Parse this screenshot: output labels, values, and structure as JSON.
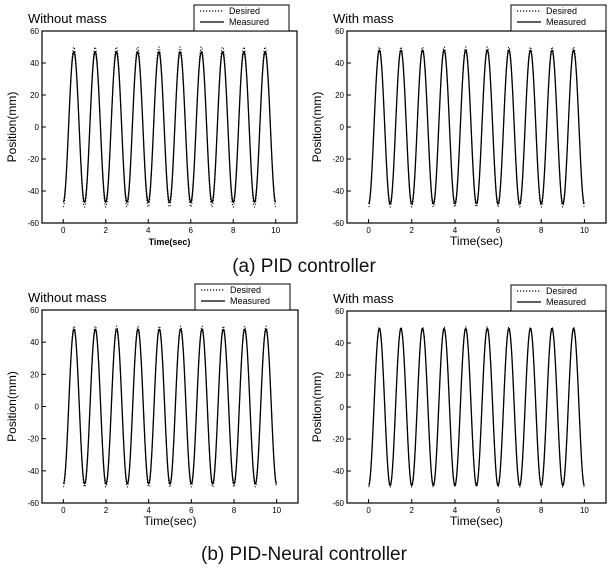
{
  "captions": {
    "a": "(a) PID controller",
    "b": "(b) PID-Neural controller"
  },
  "chart_data": [
    {
      "type": "line",
      "title": "Without mass",
      "xlabel": "Time(sec)",
      "ylabel": "Position(mm)",
      "xlim": [
        -1,
        11
      ],
      "ylim": [
        -60,
        60
      ],
      "xticks": [
        0,
        2,
        4,
        6,
        8,
        10
      ],
      "yticks": [
        -60,
        -40,
        -20,
        0,
        20,
        40,
        60
      ],
      "legend": "top-right",
      "grid": false,
      "x_end": 10,
      "series": [
        {
          "name": "Desired",
          "style": "dotted",
          "amplitude": 50,
          "period_sec": 1.0,
          "offset": 0
        },
        {
          "name": "Measured",
          "style": "solid",
          "amplitude": 47,
          "period_sec": 1.0,
          "offset": 0
        }
      ]
    },
    {
      "type": "line",
      "title": "With mass",
      "xlabel": "Time(sec)",
      "ylabel": "Position(mm)",
      "xlim": [
        -1,
        11
      ],
      "ylim": [
        -60,
        60
      ],
      "xticks": [
        0,
        2,
        4,
        6,
        8,
        10
      ],
      "yticks": [
        -60,
        -40,
        -20,
        0,
        20,
        40,
        60
      ],
      "legend": "top-right",
      "grid": false,
      "x_end": 10,
      "series": [
        {
          "name": "Desired",
          "style": "dotted",
          "amplitude": 50,
          "period_sec": 1.0,
          "offset": 0
        },
        {
          "name": "Measured",
          "style": "solid",
          "amplitude": 48,
          "period_sec": 1.0,
          "offset": 0
        }
      ]
    },
    {
      "type": "line",
      "title": "Without mass",
      "xlabel": "Time(sec)",
      "ylabel": "Position(mm)",
      "xlim": [
        -1,
        11
      ],
      "ylim": [
        -60,
        60
      ],
      "xticks": [
        0,
        2,
        4,
        6,
        8,
        10
      ],
      "yticks": [
        -60,
        -40,
        -20,
        0,
        20,
        40,
        60
      ],
      "legend": "top-right",
      "grid": false,
      "x_end": 10,
      "series": [
        {
          "name": "Desired",
          "style": "dotted",
          "amplitude": 50,
          "period_sec": 1.0,
          "offset": 0
        },
        {
          "name": "Measured",
          "style": "solid",
          "amplitude": 48,
          "period_sec": 1.0,
          "offset": 0
        }
      ]
    },
    {
      "type": "line",
      "title": "With mass",
      "xlabel": "Time(sec)",
      "ylabel": "Position(mm)",
      "xlim": [
        -1,
        11
      ],
      "ylim": [
        -60,
        60
      ],
      "xticks": [
        0,
        2,
        4,
        6,
        8,
        10
      ],
      "yticks": [
        -60,
        -40,
        -20,
        0,
        20,
        40,
        60
      ],
      "legend": "top-right",
      "grid": false,
      "x_end": 10,
      "series": [
        {
          "name": "Desired",
          "style": "dotted",
          "amplitude": 50,
          "period_sec": 1.0,
          "offset": 0
        },
        {
          "name": "Measured",
          "style": "solid",
          "amplitude": 49,
          "period_sec": 1.0,
          "offset": 0
        }
      ]
    }
  ]
}
